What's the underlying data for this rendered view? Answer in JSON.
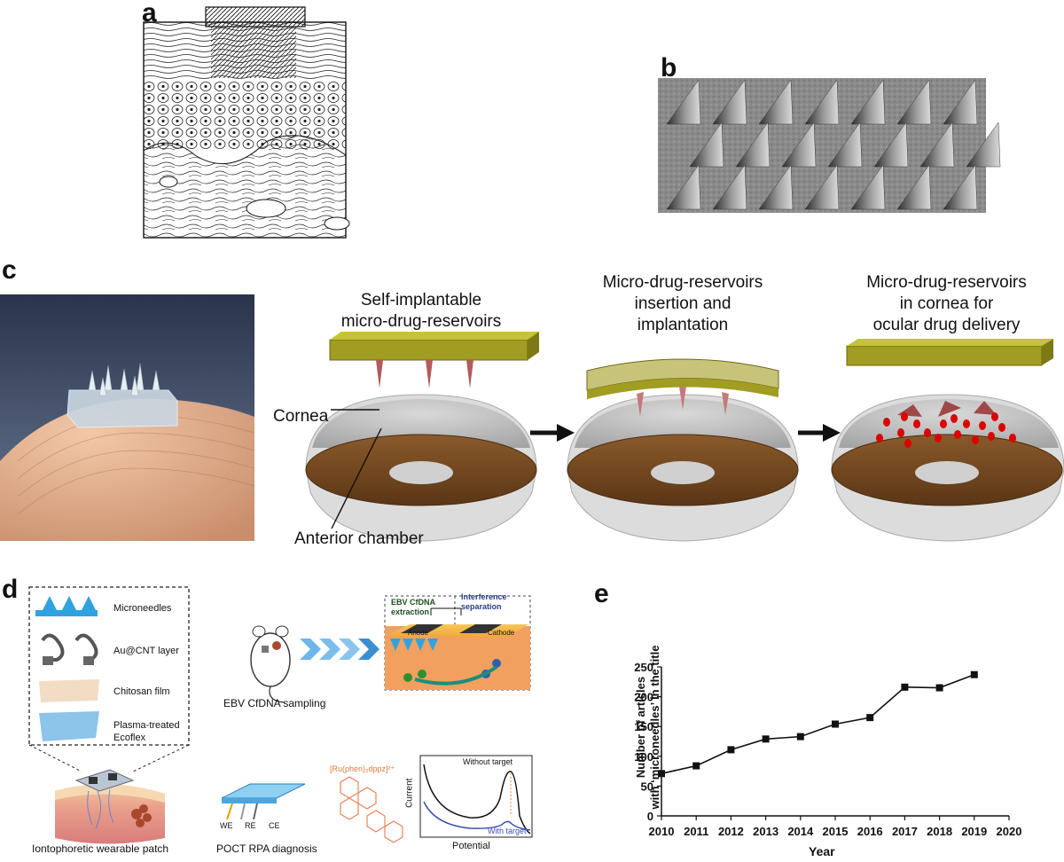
{
  "panels": {
    "a": {
      "letter": "a"
    },
    "b": {
      "letter": "b"
    },
    "c": {
      "letter": "c",
      "step1_title_line1": "Self-implantable",
      "step1_title_line2": "micro-drug-reservoirs",
      "step2_title_line1": "Micro-drug-reservoirs",
      "step2_title_line2": "insertion and",
      "step2_title_line3": "implantation",
      "step3_title_line1": "Micro-drug-reservoirs",
      "step3_title_line2": "in cornea for",
      "step3_title_line3": "ocular drug delivery",
      "label_cornea": "Cornea",
      "label_anterior": "Anterior chamber"
    },
    "d": {
      "letter": "d",
      "legend": [
        "Microneedles",
        "Au@CNT layer",
        "Chitosan film",
        "Plasma-treated",
        "Ecoflex"
      ],
      "patch_caption": "Iontophoretic wearable patch",
      "sampling_caption": "EBV CfDNA sampling",
      "extraction_line1": "EBV CfDNA",
      "extraction_line2": "extraction",
      "interference_line1": "Interference",
      "interference_line2": "separation",
      "anode": "Anode",
      "cathode": "Cathode",
      "electrodes": [
        "WE",
        "RE",
        "CE"
      ],
      "poct_caption": "POCT RPA diagnosis",
      "ru_complex": "[Ru(phen)₂dppz]²⁺",
      "mini_without": "Without target",
      "mini_with": "With target",
      "mini_ylabel": "Current",
      "mini_xlabel": "Potential"
    },
    "e": {
      "letter": "e"
    }
  },
  "chart_data": {
    "type": "line",
    "x": [
      2010,
      2011,
      2012,
      2013,
      2014,
      2015,
      2016,
      2017,
      2018,
      2019
    ],
    "series": [
      {
        "values": [
          71,
          84,
          111,
          129,
          133,
          154,
          165,
          216,
          215,
          237
        ]
      }
    ],
    "xlabel": "Year",
    "ylabel_line1": "Number of articles",
    "ylabel_line2": "with ‘microneedles’ in the title",
    "xlim": [
      2010,
      2020
    ],
    "ylim": [
      0,
      250
    ],
    "xticks": [
      2010,
      2011,
      2012,
      2013,
      2014,
      2015,
      2016,
      2017,
      2018,
      2019,
      2020
    ],
    "yticks": [
      0,
      50,
      100,
      150,
      200,
      250
    ],
    "grid": false,
    "marker": "square",
    "color": "#111111"
  }
}
